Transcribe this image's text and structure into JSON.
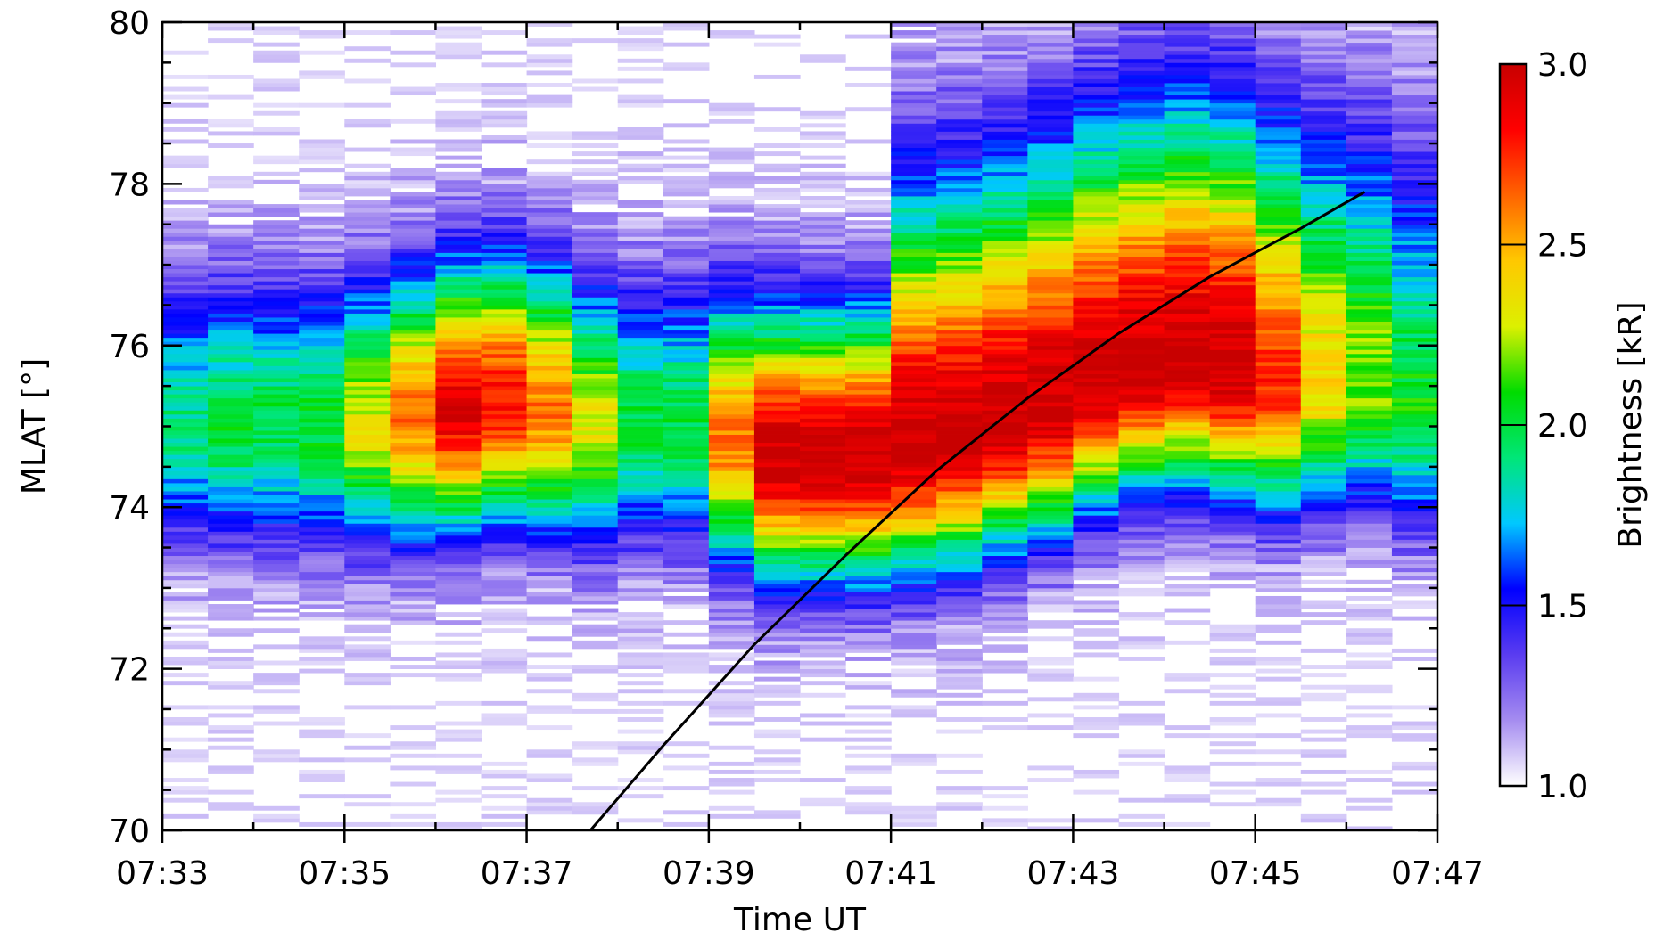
{
  "chart_data": {
    "type": "heatmap",
    "title": "",
    "xlabel": "Time UT",
    "ylabel": "MLAT [°]",
    "x_range_minutes": [
      0,
      14
    ],
    "x_ticks": [
      "07:33",
      "07:35",
      "07:37",
      "07:39",
      "07:41",
      "07:43",
      "07:45",
      "07:47"
    ],
    "x_tick_minutes": [
      0,
      2,
      4,
      6,
      8,
      10,
      12,
      14
    ],
    "ylim": [
      70,
      80
    ],
    "y_ticks": [
      70,
      72,
      74,
      76,
      78,
      80
    ],
    "colorbar": {
      "label": "Brightness [kR]",
      "range": [
        1.0,
        3.0
      ],
      "ticks": [
        "1.0",
        "1.5",
        "2.0",
        "2.5",
        "3.0"
      ],
      "tick_values": [
        1.0,
        1.5,
        2.0,
        2.5,
        3.0
      ],
      "colormap": [
        "#ffffff",
        "#a58cf0",
        "#5a3cf0",
        "#0000ff",
        "#00c8ff",
        "#00e678",
        "#00dc00",
        "#dcf000",
        "#ffc800",
        "#ff6400",
        "#ff0000",
        "#c80000"
      ]
    },
    "column_minutes": [
      0.0,
      0.5,
      1.0,
      1.5,
      2.0,
      2.5,
      3.0,
      3.5,
      4.0,
      4.5,
      5.0,
      5.5,
      6.0,
      6.5,
      7.0,
      7.5,
      8.0,
      8.5,
      9.0,
      9.5,
      10.0,
      10.5,
      11.0,
      11.5,
      12.0,
      12.5,
      13.0,
      13.5
    ],
    "band_center_mlat": [
      75.0,
      75.0,
      75.0,
      75.0,
      75.0,
      75.1,
      75.2,
      75.3,
      75.2,
      75.0,
      75.0,
      75.0,
      74.8,
      74.6,
      74.6,
      74.6,
      74.7,
      74.8,
      75.0,
      75.2,
      75.5,
      75.7,
      75.8,
      75.7,
      75.5,
      75.5,
      75.5,
      75.2
    ],
    "band_peak_kR": [
      1.9,
      2.0,
      2.0,
      2.05,
      2.3,
      2.6,
      2.9,
      2.8,
      2.6,
      2.3,
      2.0,
      2.0,
      2.6,
      3.0,
      3.0,
      3.0,
      3.0,
      3.0,
      3.0,
      3.0,
      3.0,
      3.0,
      3.0,
      3.0,
      2.75,
      2.4,
      2.2,
      2.05
    ],
    "line": {
      "name": "",
      "color": "#000000",
      "x_minutes": [
        4.7,
        5.5,
        6.5,
        7.5,
        8.5,
        9.5,
        10.5,
        11.5,
        12.5,
        13.2
      ],
      "mlat": [
        70.0,
        71.05,
        72.3,
        73.4,
        74.45,
        75.35,
        76.15,
        76.85,
        77.45,
        77.9
      ]
    }
  }
}
